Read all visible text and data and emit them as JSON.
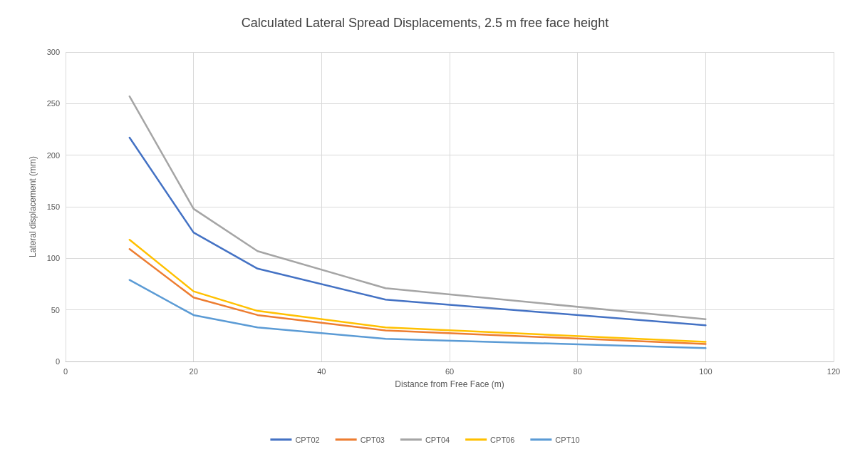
{
  "chart_data": {
    "type": "line",
    "title": "Calculated Lateral Spread Displacements, 2.5 m free face height",
    "xlabel": "Distance from Free Face (m)",
    "ylabel": "Lateral displacement (mm)",
    "x": [
      10,
      20,
      30,
      50,
      100
    ],
    "series": [
      {
        "name": "CPT02",
        "color": "#4472c4",
        "values": [
          217,
          125,
          90,
          60,
          35
        ]
      },
      {
        "name": "CPT03",
        "color": "#ed7d31",
        "values": [
          109,
          62,
          45,
          30,
          17
        ]
      },
      {
        "name": "CPT04",
        "color": "#a5a5a5",
        "values": [
          257,
          148,
          107,
          71,
          41
        ]
      },
      {
        "name": "CPT06",
        "color": "#ffc000",
        "values": [
          118,
          68,
          49,
          33,
          19
        ]
      },
      {
        "name": "CPT10",
        "color": "#5b9bd5",
        "values": [
          79,
          45,
          33,
          22,
          13
        ]
      }
    ],
    "xlim": [
      0,
      120
    ],
    "xticks": [
      0,
      20,
      40,
      60,
      80,
      100,
      120
    ],
    "ylim": [
      0,
      300
    ],
    "yticks": [
      0,
      50,
      100,
      150,
      200,
      250,
      300
    ],
    "grid": true,
    "legend": "bottom",
    "marker": "none",
    "line_style": "solid"
  }
}
